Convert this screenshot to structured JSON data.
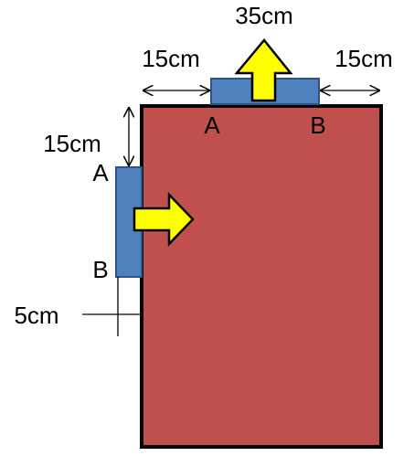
{
  "labels": {
    "top_length": "35cm",
    "top_left_gap": "15cm",
    "top_right_gap": "15cm",
    "side_top_gap": "15cm",
    "side_bottom_gap": "5cm",
    "top_end_a": "A",
    "top_end_b": "B",
    "side_end_a": "A",
    "side_end_b": "B"
  },
  "colors": {
    "plate": "#c0504d",
    "bar": "#4f81bd",
    "arrow": "#ffff00",
    "line": "#000000"
  }
}
